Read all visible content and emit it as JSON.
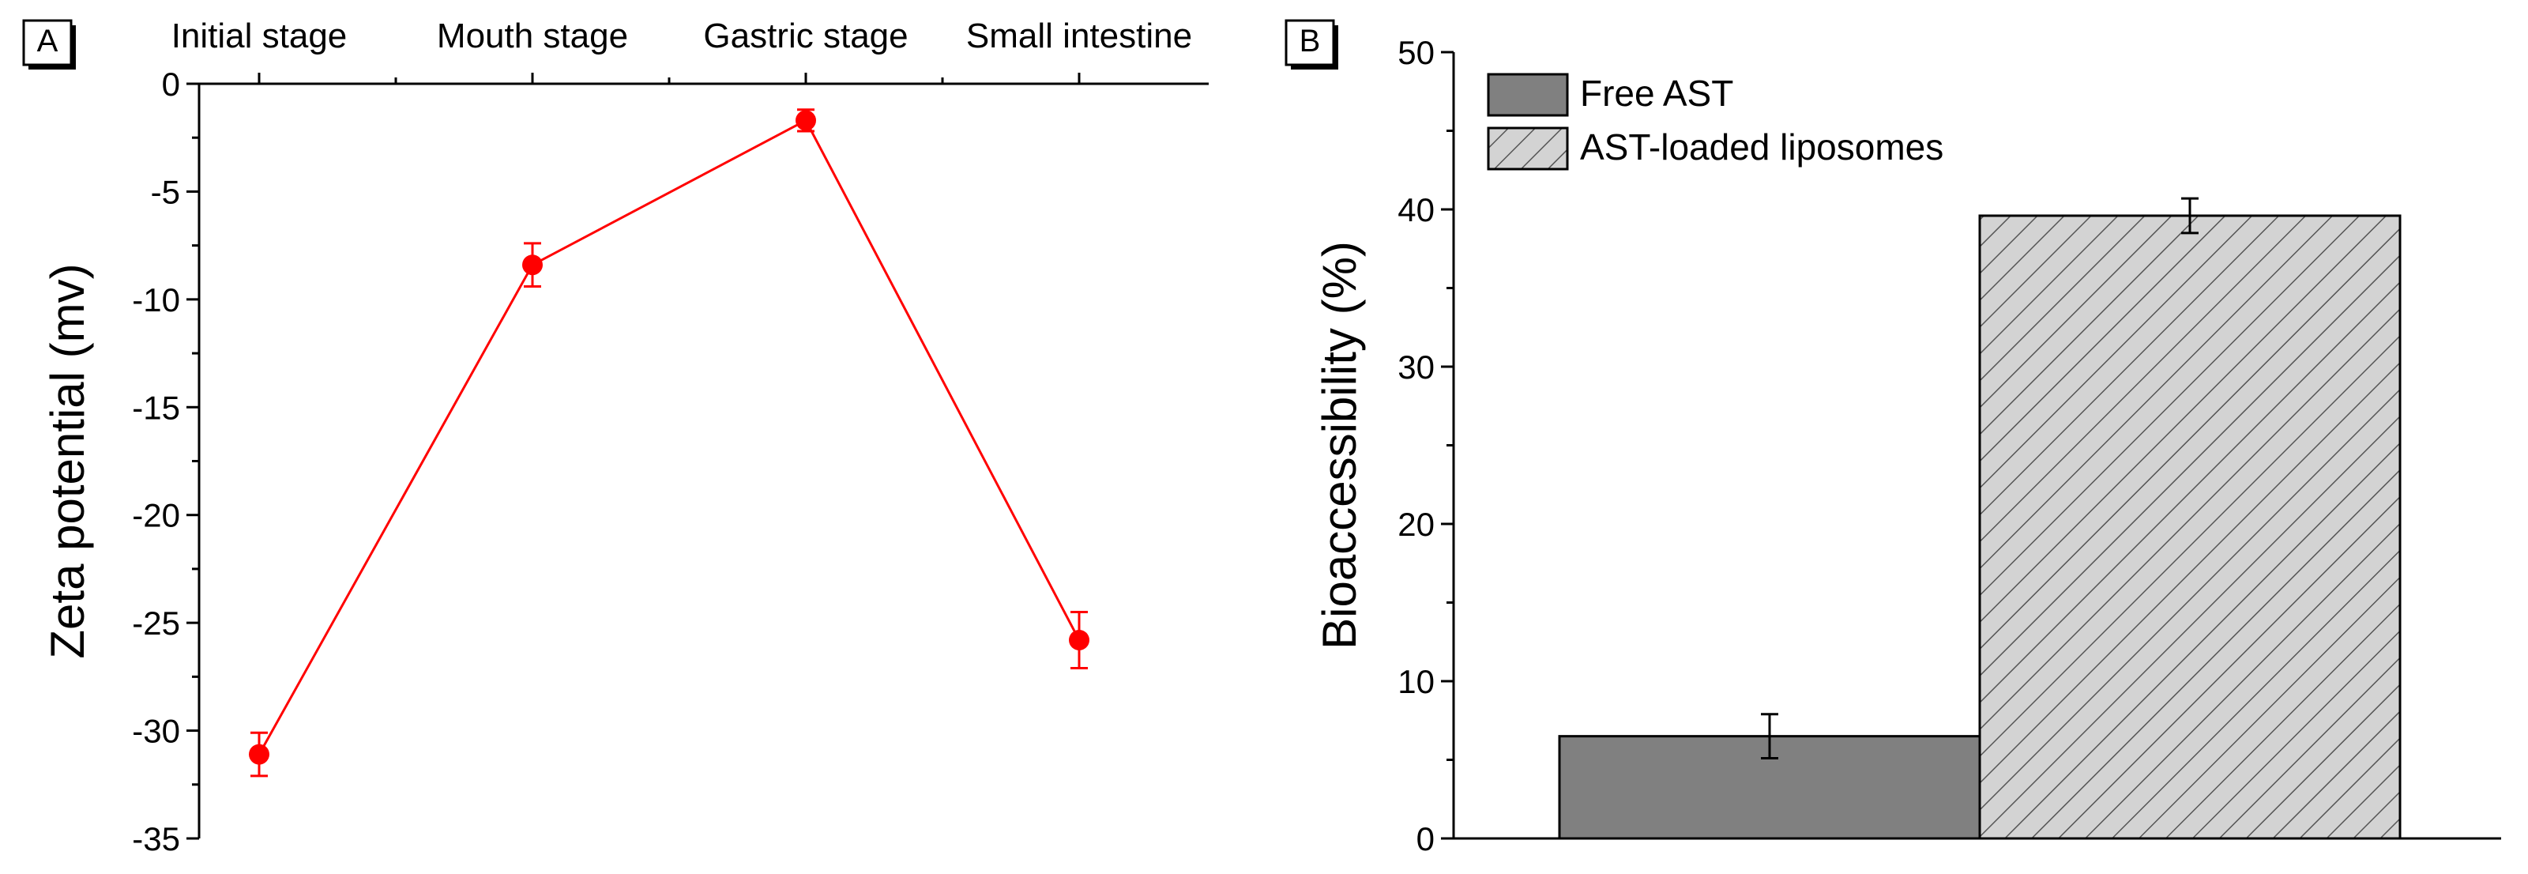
{
  "chart_data": [
    {
      "panel_label": "A",
      "type": "line",
      "categories": [
        "Initial stage",
        "Mouth stage",
        "Gastric stage",
        "Small intestine"
      ],
      "series": [
        {
          "name": "Zeta potential",
          "values": [
            -31.1,
            -8.4,
            -1.7,
            -25.8
          ],
          "errors": [
            1.0,
            1.0,
            0.5,
            1.3
          ],
          "color": "#ff0000"
        }
      ],
      "ylabel": "Zeta potential (mv)",
      "xlabel": "",
      "ylim": [
        -35,
        0
      ],
      "yticks": [
        0,
        -5,
        -10,
        -15,
        -20,
        -25,
        -30,
        -35
      ],
      "ytick_labels": [
        "0",
        "-5",
        "-10",
        "-15",
        "-20",
        "-25",
        "-30",
        "-35"
      ],
      "x_axis_position": "top",
      "grid": false
    },
    {
      "panel_label": "B",
      "type": "bar",
      "categories": [
        "Free AST",
        "AST-loaded liposomes"
      ],
      "values": [
        6.5,
        39.6
      ],
      "errors": [
        1.4,
        1.1
      ],
      "legend": [
        {
          "label": "Free AST",
          "fill": "solid",
          "color": "#808080"
        },
        {
          "label": "AST-loaded liposomes",
          "fill": "hatched",
          "color": "#d3d3d3"
        }
      ],
      "legend_position": "top-left",
      "ylabel": "Bioaccessibility (%)",
      "xlabel": "",
      "ylim": [
        0,
        50
      ],
      "yticks": [
        0,
        10,
        20,
        30,
        40,
        50
      ],
      "ytick_labels": [
        "0",
        "10",
        "20",
        "30",
        "40",
        "50"
      ],
      "grid": false
    }
  ]
}
